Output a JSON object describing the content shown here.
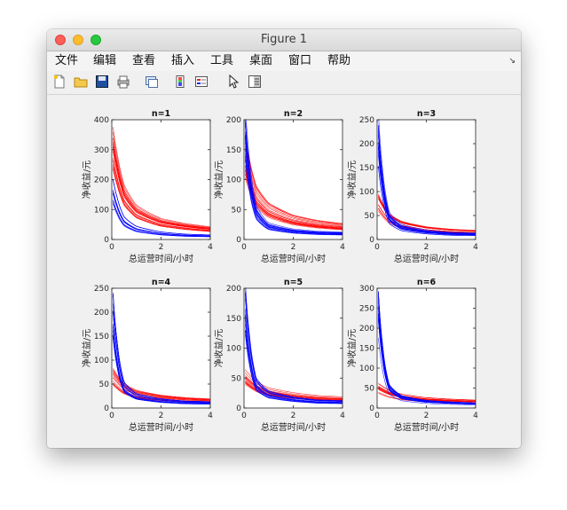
{
  "window": {
    "title": "Figure 1"
  },
  "menu": [
    "文件",
    "编辑",
    "查看",
    "插入",
    "工具",
    "桌面",
    "窗口",
    "帮助"
  ],
  "toolbar": [
    "new-figure-icon",
    "open-file-icon",
    "save-icon",
    "print-icon",
    "link-plot-icon",
    "insert-colorbar-icon",
    "insert-legend-icon",
    "edit-plot-pointer-icon",
    "property-inspector-icon"
  ],
  "colors": {
    "series_a": "#ff0000",
    "series_b": "#0000ff"
  },
  "chart_data": [
    {
      "type": "line",
      "title": "n=1",
      "xlabel": "总运营时间/小时",
      "ylabel": "净收益/元",
      "xlim": [
        0,
        4
      ],
      "ylim": [
        0,
        400
      ],
      "xticks": [
        "0",
        "2",
        "4"
      ],
      "yticks": [
        "0",
        "100",
        "200",
        "300",
        "400"
      ],
      "series": [
        {
          "color": "#ff0000",
          "count": 18,
          "x": [
            0.05,
            0.5,
            1,
            2,
            3,
            4
          ],
          "values": [
            310,
            150,
            95,
            58,
            44,
            35
          ]
        },
        {
          "color": "#0000ff",
          "count": 12,
          "x": [
            0.05,
            0.5,
            1,
            2,
            3,
            4
          ],
          "values": [
            160,
            60,
            35,
            20,
            14,
            12
          ]
        }
      ]
    },
    {
      "type": "line",
      "title": "n=2",
      "xlabel": "总运营时间/小时",
      "ylabel": "净收益/元",
      "xlim": [
        0,
        4
      ],
      "ylim": [
        0,
        200
      ],
      "xticks": [
        "0",
        "2",
        "4"
      ],
      "yticks": [
        "0",
        "50",
        "100",
        "150",
        "200"
      ],
      "series": [
        {
          "color": "#ff0000",
          "count": 18,
          "x": [
            0.05,
            0.5,
            1,
            2,
            3,
            4
          ],
          "values": [
            135,
            70,
            48,
            32,
            25,
            21
          ]
        },
        {
          "color": "#0000ff",
          "count": 16,
          "x": [
            0.05,
            0.5,
            1,
            2,
            3,
            4
          ],
          "values": [
            180,
            45,
            22,
            14,
            11,
            10
          ]
        }
      ]
    },
    {
      "type": "line",
      "title": "n=3",
      "xlabel": "总运营时间/小时",
      "ylabel": "净收益/元",
      "xlim": [
        0,
        4
      ],
      "ylim": [
        0,
        250
      ],
      "xticks": [
        "0",
        "2",
        "4"
      ],
      "yticks": [
        "0",
        "50",
        "100",
        "150",
        "200",
        "250"
      ],
      "series": [
        {
          "color": "#ff0000",
          "count": 14,
          "x": [
            0.05,
            0.5,
            1,
            2,
            3,
            4
          ],
          "values": [
            75,
            42,
            30,
            21,
            17,
            15
          ]
        },
        {
          "color": "#0000ff",
          "count": 16,
          "x": [
            0.05,
            0.5,
            1,
            2,
            3,
            4
          ],
          "values": [
            210,
            45,
            25,
            16,
            12,
            11
          ]
        }
      ]
    },
    {
      "type": "line",
      "title": "n=4",
      "xlabel": "总运营时间/小时",
      "ylabel": "净收益/元",
      "xlim": [
        0,
        4
      ],
      "ylim": [
        0,
        250
      ],
      "xticks": [
        "0",
        "2",
        "4"
      ],
      "yticks": [
        "0",
        "50",
        "100",
        "150",
        "200",
        "250"
      ],
      "series": [
        {
          "color": "#ff0000",
          "count": 14,
          "x": [
            0.05,
            0.5,
            1,
            2,
            3,
            4
          ],
          "values": [
            65,
            40,
            29,
            21,
            17,
            15
          ]
        },
        {
          "color": "#0000ff",
          "count": 16,
          "x": [
            0.05,
            0.5,
            1,
            2,
            3,
            4
          ],
          "values": [
            200,
            45,
            25,
            16,
            12,
            11
          ]
        }
      ]
    },
    {
      "type": "line",
      "title": "n=5",
      "xlabel": "总运营时间/小时",
      "ylabel": "净收益/元",
      "xlim": [
        0,
        4
      ],
      "ylim": [
        0,
        200
      ],
      "xticks": [
        "0",
        "2",
        "4"
      ],
      "yticks": [
        "0",
        "50",
        "100",
        "150",
        "200"
      ],
      "series": [
        {
          "color": "#ff0000",
          "count": 14,
          "x": [
            0.05,
            0.5,
            1,
            2,
            3,
            4
          ],
          "values": [
            55,
            38,
            29,
            22,
            18,
            16
          ]
        },
        {
          "color": "#0000ff",
          "count": 16,
          "x": [
            0.05,
            0.5,
            1,
            2,
            3,
            4
          ],
          "values": [
            170,
            40,
            23,
            15,
            11,
            10
          ]
        }
      ]
    },
    {
      "type": "line",
      "title": "n=6",
      "xlabel": "总运营时间/小时",
      "ylabel": "净收益/元",
      "xlim": [
        0,
        4
      ],
      "ylim": [
        0,
        300
      ],
      "xticks": [
        "0",
        "2",
        "4"
      ],
      "yticks": [
        "0",
        "50",
        "100",
        "150",
        "200",
        "250",
        "300"
      ],
      "series": [
        {
          "color": "#ff0000",
          "count": 14,
          "x": [
            0.05,
            0.5,
            1,
            2,
            3,
            4
          ],
          "values": [
            50,
            36,
            28,
            21,
            18,
            16
          ]
        },
        {
          "color": "#0000ff",
          "count": 16,
          "x": [
            0.05,
            0.5,
            1,
            2,
            3,
            4
          ],
          "values": [
            230,
            45,
            24,
            15,
            12,
            10
          ]
        }
      ]
    }
  ]
}
